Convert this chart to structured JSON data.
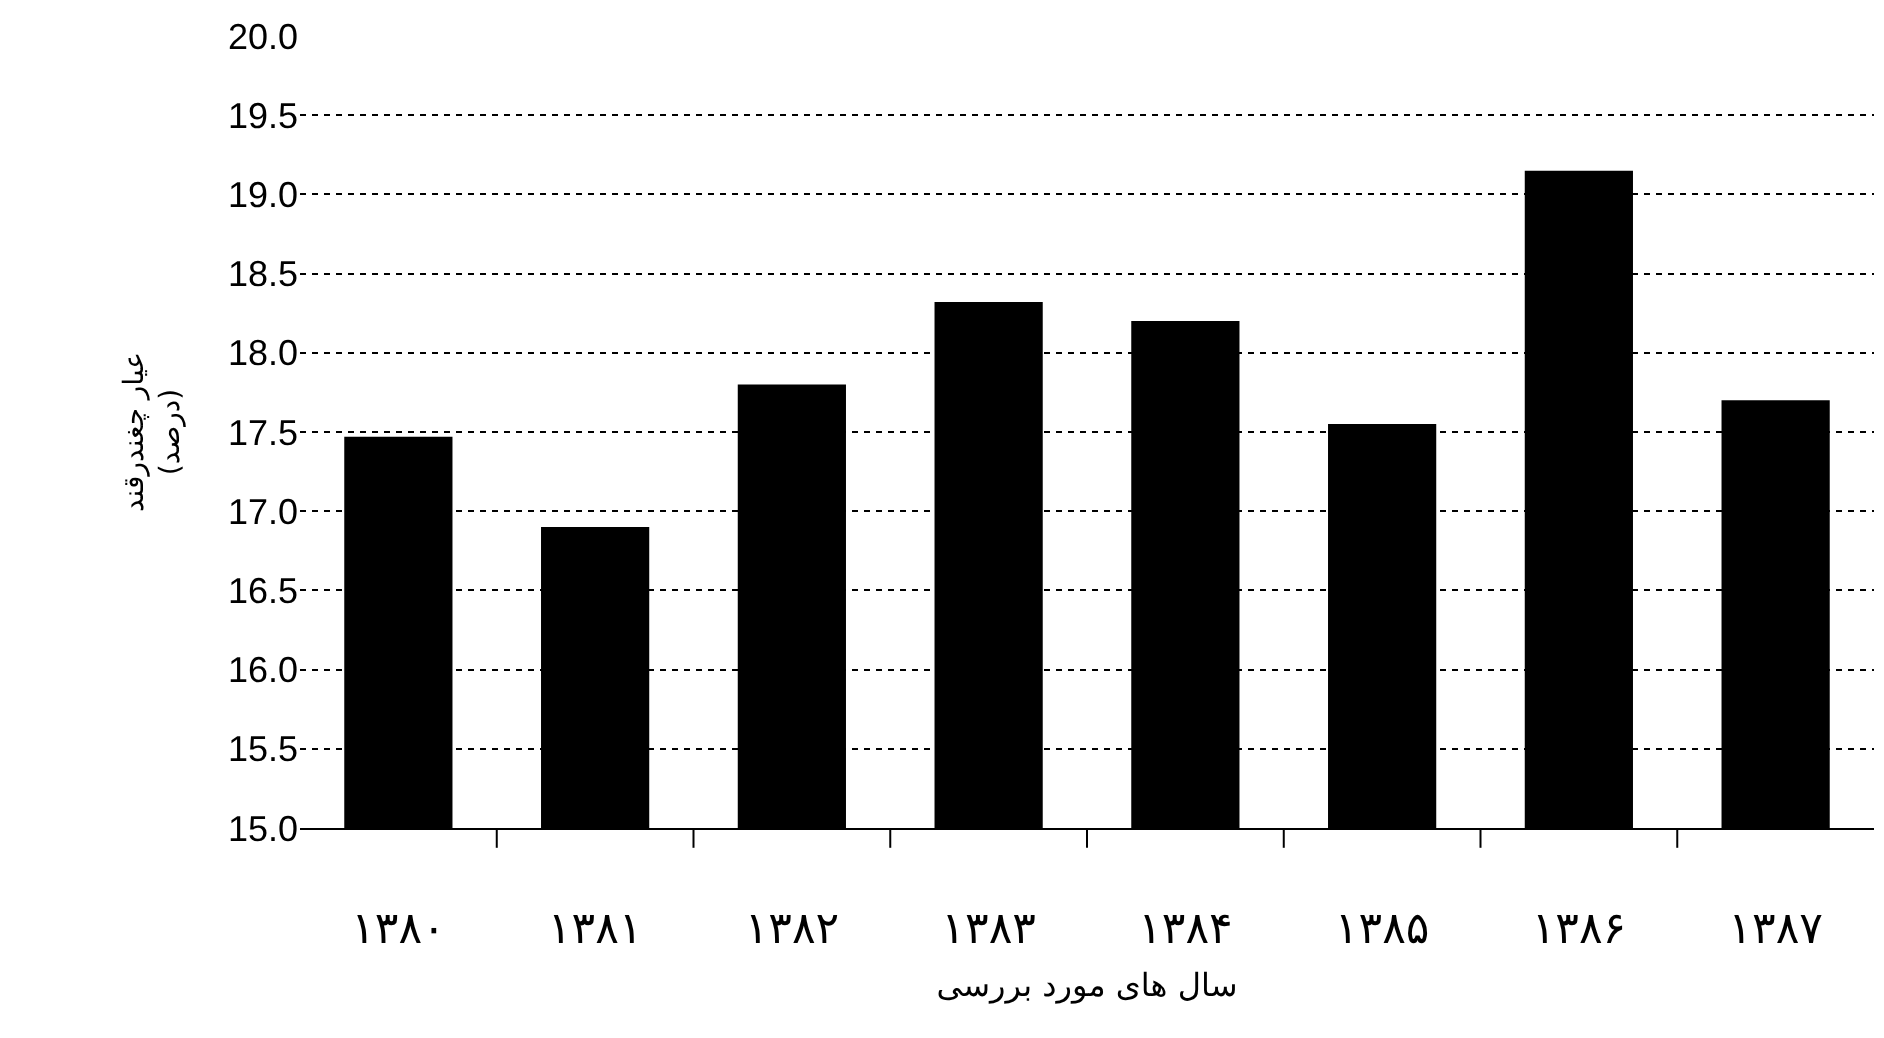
{
  "chart_data": {
    "type": "bar",
    "ylabel": "عیار چغندرقند\n(درصد)",
    "xlabel": "سال های مورد بررسی",
    "categories": [
      "۱۳۸۰",
      "۱۳۸۱",
      "۱۳۸۲",
      "۱۳۸۳",
      "۱۳۸۴",
      "۱۳۸۵",
      "۱۳۸۶",
      "۱۳۸۷"
    ],
    "values": [
      17.47,
      16.9,
      17.8,
      18.32,
      18.2,
      17.55,
      19.15,
      17.7
    ],
    "color": "#000000",
    "ylim": [
      15,
      20
    ],
    "yticks": [
      {
        "value": 15,
        "label": "15.0"
      },
      {
        "value": 15.5,
        "label": "15.5"
      },
      {
        "value": 16,
        "label": "16.0"
      },
      {
        "value": 16.5,
        "label": "16.5"
      },
      {
        "value": 17,
        "label": "17.0"
      },
      {
        "value": 17.5,
        "label": "17.5"
      },
      {
        "value": 18,
        "label": "18.0"
      },
      {
        "value": 18.5,
        "label": "18.5"
      },
      {
        "value": 19,
        "label": "19.0"
      },
      {
        "value": 19.5,
        "label": "19.5"
      },
      {
        "value": 20,
        "label": "20.0"
      }
    ],
    "grid": "y"
  }
}
